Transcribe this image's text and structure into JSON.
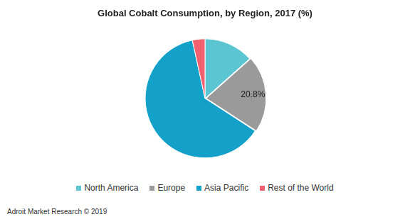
{
  "chart_data": {
    "type": "pie",
    "title": "Global Cobalt Consumption, by Region, 2017 (%)",
    "categories": [
      "North America",
      "Europe",
      "Asia Pacific",
      "Rest of the World"
    ],
    "values": [
      13.4,
      20.8,
      62.4,
      3.4
    ],
    "colors": [
      "#5bc6d2",
      "#9a9a9a",
      "#13a0c9",
      "#f2606f"
    ],
    "data_labels": true,
    "value_labels": [
      null,
      "20.8%",
      null,
      null
    ],
    "legend": "bottom",
    "source": "Adroit Market Research © 2019"
  }
}
